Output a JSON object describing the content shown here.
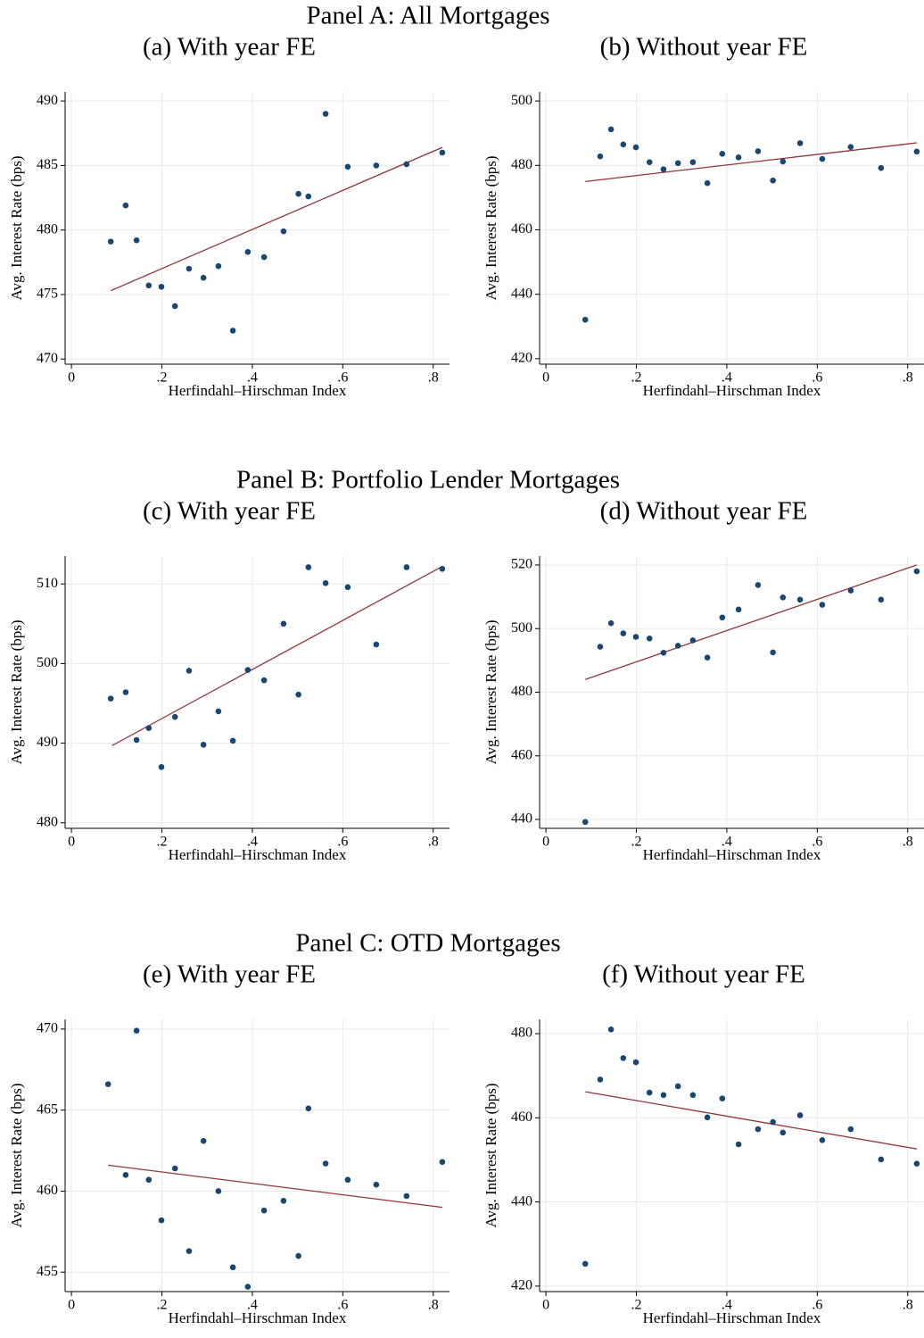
{
  "panels": [
    "Panel A: All Mortgages",
    "Panel B: Portfolio Lender Mortgages",
    "Panel C: OTD Mortgages"
  ],
  "chart_data": [
    {
      "type": "scatter",
      "title": "(a) With year FE",
      "xlabel": "Herfindahl–Hirschman Index",
      "ylabel": "Avg. Interest Rate (bps)",
      "x": [
        0.087,
        0.12,
        0.144,
        0.171,
        0.199,
        0.229,
        0.26,
        0.292,
        0.325,
        0.357,
        0.39,
        0.426,
        0.469,
        0.502,
        0.524,
        0.562,
        0.611,
        0.674,
        0.741,
        0.82
      ],
      "y": [
        479.1,
        481.9,
        479.2,
        475.7,
        475.6,
        474.1,
        477.0,
        476.3,
        477.2,
        472.2,
        478.3,
        477.9,
        479.9,
        482.8,
        482.6,
        489.0,
        484.9,
        485.0,
        485.1,
        486.0
      ],
      "color": "#1a476f",
      "fit": {
        "x": [
          0.087,
          0.82
        ],
        "y": [
          475.3,
          486.4
        ],
        "color": "#90353b"
      },
      "xlim": [
        -0.014,
        0.836
      ],
      "ylim": [
        469.6,
        490.7
      ],
      "xticks": [
        0,
        {
          "value": 0.2,
          "label": ".2"
        },
        {
          "value": 0.4,
          "label": ".4"
        },
        {
          "value": 0.6,
          "label": ".6"
        },
        {
          "value": 0.8,
          "label": ".8"
        }
      ],
      "yticks": [
        470,
        475,
        480,
        485,
        490
      ],
      "grid": true
    },
    {
      "type": "scatter",
      "title": "(b) Without year FE",
      "xlabel": "Herfindahl–Hirschman Index",
      "ylabel": "Avg. Interest Rate (bps)",
      "x": [
        0.087,
        0.12,
        0.144,
        0.171,
        0.199,
        0.229,
        0.26,
        0.292,
        0.325,
        0.357,
        0.39,
        0.426,
        0.469,
        0.502,
        0.524,
        0.562,
        0.611,
        0.674,
        0.741,
        0.82
      ],
      "y": [
        432.1,
        482.8,
        491.2,
        486.5,
        485.6,
        481.0,
        478.8,
        480.7,
        481.0,
        474.5,
        483.6,
        482.5,
        484.4,
        475.3,
        481.2,
        486.9,
        482.0,
        485.7,
        479.2,
        484.3
      ],
      "color": "#1a476f",
      "fit": {
        "x": [
          0.087,
          0.82
        ],
        "y": [
          475.0,
          487.0
        ],
        "color": "#90353b"
      },
      "xlim": [
        -0.014,
        0.836
      ],
      "ylim": [
        418.3,
        502.8
      ],
      "xticks": [
        0,
        {
          "value": 0.2,
          "label": ".2"
        },
        {
          "value": 0.4,
          "label": ".4"
        },
        {
          "value": 0.6,
          "label": ".6"
        },
        {
          "value": 0.8,
          "label": ".8"
        }
      ],
      "yticks": [
        420,
        440,
        460,
        480,
        500
      ],
      "grid": true
    },
    {
      "type": "scatter",
      "title": "(c) With year FE",
      "xlabel": "Herfindahl–Hirschman Index",
      "ylabel": "Avg. Interest Rate (bps)",
      "x": [
        0.087,
        0.12,
        0.144,
        0.171,
        0.199,
        0.229,
        0.26,
        0.292,
        0.325,
        0.357,
        0.39,
        0.426,
        0.469,
        0.502,
        0.524,
        0.562,
        0.611,
        0.674,
        0.741,
        0.82
      ],
      "y": [
        495.6,
        496.4,
        490.4,
        491.9,
        487.0,
        493.3,
        499.1,
        489.8,
        494.0,
        490.3,
        499.2,
        497.9,
        505.0,
        496.1,
        512.1,
        510.1,
        509.6,
        502.4,
        512.1,
        511.9
      ],
      "color": "#1a476f",
      "fit": {
        "x": [
          0.09,
          0.82
        ],
        "y": [
          489.7,
          512.2
        ],
        "color": "#90353b"
      },
      "xlim": [
        -0.014,
        0.836
      ],
      "ylim": [
        479.3,
        513.5
      ],
      "xticks": [
        0,
        {
          "value": 0.2,
          "label": ".2"
        },
        {
          "value": 0.4,
          "label": ".4"
        },
        {
          "value": 0.6,
          "label": ".6"
        },
        {
          "value": 0.8,
          "label": ".8"
        }
      ],
      "yticks": [
        480,
        490,
        500,
        510
      ],
      "grid": true
    },
    {
      "type": "scatter",
      "title": "(d) Without year FE",
      "xlabel": "Herfindahl–Hirschman Index",
      "ylabel": "Avg. Interest Rate (bps)",
      "x": [
        0.087,
        0.12,
        0.144,
        0.171,
        0.199,
        0.229,
        0.26,
        0.292,
        0.325,
        0.357,
        0.39,
        0.426,
        0.469,
        0.502,
        0.524,
        0.562,
        0.611,
        0.674,
        0.741,
        0.82
      ],
      "y": [
        439.2,
        494.3,
        501.7,
        498.5,
        497.4,
        496.9,
        492.4,
        494.6,
        496.3,
        490.9,
        503.5,
        506.0,
        513.7,
        492.5,
        509.8,
        509.1,
        507.5,
        512.0,
        509.1,
        518.0
      ],
      "color": "#1a476f",
      "fit": {
        "x": [
          0.087,
          0.82
        ],
        "y": [
          484.0,
          520.0
        ],
        "color": "#90353b"
      },
      "xlim": [
        -0.014,
        0.836
      ],
      "ylim": [
        437.2,
        522.8
      ],
      "xticks": [
        0,
        {
          "value": 0.2,
          "label": ".2"
        },
        {
          "value": 0.4,
          "label": ".4"
        },
        {
          "value": 0.6,
          "label": ".6"
        },
        {
          "value": 0.8,
          "label": ".8"
        }
      ],
      "yticks": [
        440,
        460,
        480,
        500,
        520
      ],
      "grid": true
    },
    {
      "type": "scatter",
      "title": "(e) With year FE",
      "xlabel": "Herfindahl–Hirschman Index",
      "ylabel": "Avg. Interest Rate (bps)",
      "x": [
        0.081,
        0.12,
        0.144,
        0.171,
        0.199,
        0.229,
        0.26,
        0.292,
        0.325,
        0.357,
        0.39,
        0.426,
        0.469,
        0.502,
        0.524,
        0.562,
        0.611,
        0.674,
        0.741,
        0.82
      ],
      "y": [
        466.6,
        461.0,
        469.9,
        460.7,
        458.2,
        461.4,
        456.3,
        463.1,
        460.0,
        455.3,
        454.1,
        458.8,
        459.4,
        456.0,
        465.1,
        461.7,
        460.7,
        460.4,
        459.7,
        461.8
      ],
      "color": "#1a476f",
      "fit": {
        "x": [
          0.081,
          0.82
        ],
        "y": [
          461.6,
          459.0
        ],
        "color": "#90353b"
      },
      "xlim": [
        -0.014,
        0.836
      ],
      "ylim": [
        453.8,
        470.6
      ],
      "xticks": [
        0,
        {
          "value": 0.2,
          "label": ".2"
        },
        {
          "value": 0.4,
          "label": ".4"
        },
        {
          "value": 0.6,
          "label": ".6"
        },
        {
          "value": 0.8,
          "label": ".8"
        }
      ],
      "yticks": [
        455,
        460,
        465,
        470
      ],
      "grid": true
    },
    {
      "type": "scatter",
      "title": "(f) Without year FE",
      "xlabel": "Herfindahl–Hirschman Index",
      "ylabel": "Avg. Interest Rate (bps)",
      "x": [
        0.087,
        0.12,
        0.144,
        0.171,
        0.199,
        0.229,
        0.26,
        0.292,
        0.325,
        0.357,
        0.39,
        0.426,
        0.469,
        0.502,
        0.524,
        0.562,
        0.611,
        0.674,
        0.741,
        0.82
      ],
      "y": [
        425.3,
        469.1,
        481.0,
        474.2,
        473.2,
        466.0,
        465.4,
        467.5,
        465.4,
        460.1,
        464.6,
        453.7,
        457.3,
        459.0,
        456.5,
        460.6,
        454.7,
        457.3,
        450.1,
        449.1
      ],
      "color": "#1a476f",
      "fit": {
        "x": [
          0.087,
          0.82
        ],
        "y": [
          466.2,
          452.6
        ],
        "color": "#90353b"
      },
      "xlim": [
        -0.014,
        0.836
      ],
      "ylim": [
        418.7,
        483.4
      ],
      "xticks": [
        0,
        {
          "value": 0.2,
          "label": ".2"
        },
        {
          "value": 0.4,
          "label": ".4"
        },
        {
          "value": 0.6,
          "label": ".6"
        },
        {
          "value": 0.8,
          "label": ".8"
        }
      ],
      "yticks": [
        420,
        440,
        460,
        480
      ],
      "grid": true
    }
  ]
}
